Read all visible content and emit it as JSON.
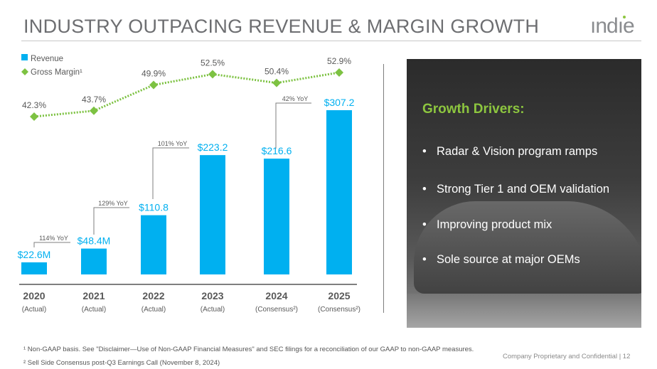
{
  "title": "INDUSTRY OUTPACING REVENUE & MARGIN GROWTH",
  "logo_text": "indie",
  "chart_data": {
    "type": "bar+line",
    "categories": [
      "2020",
      "2021",
      "2022",
      "2023",
      "2024",
      "2025"
    ],
    "category_sublabels": [
      "(Actual)",
      "(Actual)",
      "(Actual)",
      "(Actual)",
      "(Consensus²)",
      "(Consensus²)"
    ],
    "series": [
      {
        "name": "Revenue",
        "type": "bar",
        "unit": "$M",
        "values": [
          22.6,
          48.4,
          110.8,
          223.2,
          216.6,
          307.2
        ],
        "labels": [
          "$22.6M",
          "$48.4M",
          "$110.8",
          "$223.2",
          "$216.6",
          "$307.2"
        ],
        "color": "#00b0f0"
      },
      {
        "name": "Gross Margin¹",
        "type": "line",
        "unit": "%",
        "values": [
          42.3,
          43.7,
          49.9,
          52.5,
          50.4,
          52.9
        ],
        "labels": [
          "42.3%",
          "43.7%",
          "49.9%",
          "52.5%",
          "50.4%",
          "52.9%"
        ],
        "color": "#7dc242",
        "style": "dotted",
        "marker": "diamond"
      }
    ],
    "annotations": [
      {
        "from": "2020",
        "to": "2021",
        "text": "114% YoY"
      },
      {
        "from": "2021",
        "to": "2022",
        "text": "129% YoY"
      },
      {
        "from": "2022",
        "to": "2023",
        "text": "101% YoY"
      },
      {
        "from": "2024",
        "to": "2025",
        "text": "42% YoY"
      }
    ],
    "legend_position": "top-left",
    "grid": false
  },
  "panel": {
    "heading": "Growth Drivers:",
    "bullets": [
      "Radar & Vision program ramps",
      "Strong Tier 1 and OEM validation",
      "Improving product mix",
      "Sole source at major OEMs"
    ]
  },
  "footnotes": [
    "¹ Non-GAAP basis. See \"Disclaimer—Use of Non-GAAP Financial Measures\" and SEC filings for a reconciliation of our GAAP to non-GAAP measures.",
    "² Sell Side Consensus post-Q3 Earnings Call (November 8, 2024)"
  ],
  "confidential": "Company Proprietary and Confidential | 12"
}
